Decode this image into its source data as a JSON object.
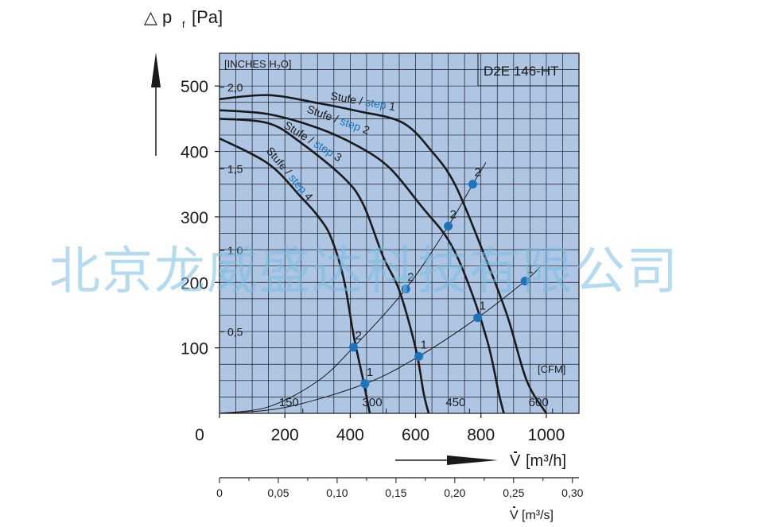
{
  "chart_data": {
    "type": "line",
    "model": "D2E 146-HT",
    "ylabel_symbol": "△ p",
    "ylabel_sub": "f",
    "ylabel_unit": "[Pa]",
    "xlabel_symbol": "V",
    "xlabel_unit": "[m³/h]",
    "x2label_symbol": "V",
    "x2label_unit": "[m³/s]",
    "inches_label_prefix": "[INCHES H",
    "inches_label_sub": "2",
    "inches_label_suffix": "O]",
    "cfm_label": "[CFM]",
    "xlim": [
      0,
      1100
    ],
    "ylim": [
      0,
      550
    ],
    "x_ticks": [
      0,
      200,
      400,
      600,
      800,
      1000
    ],
    "x_tick_labels": [
      "0",
      "200",
      "400",
      "600",
      "800",
      "1000"
    ],
    "y_ticks": [
      100,
      200,
      300,
      400,
      500
    ],
    "y_tick_labels": [
      "100",
      "200",
      "300",
      "400",
      "500"
    ],
    "inch_ticks": [
      {
        "value": 124.5,
        "label": "0,5"
      },
      {
        "value": 249,
        "label": "1,0"
      },
      {
        "value": 373.5,
        "label": "1,5"
      },
      {
        "value": 498,
        "label": "2,0"
      }
    ],
    "cfm_ticks": [
      {
        "value": 255,
        "label": "150"
      },
      {
        "value": 510,
        "label": "300"
      },
      {
        "value": 765,
        "label": "450"
      },
      {
        "value": 1019,
        "label": "600"
      }
    ],
    "m3s_ticks": [
      {
        "value": 0,
        "label": "0"
      },
      {
        "value": 0.05,
        "label": "0,05"
      },
      {
        "value": 0.1,
        "label": "0,10"
      },
      {
        "value": 0.15,
        "label": "0,15"
      },
      {
        "value": 0.2,
        "label": "0,20"
      },
      {
        "value": 0.25,
        "label": "0,25"
      },
      {
        "value": 0.3,
        "label": "0,30"
      }
    ],
    "series": [
      {
        "stufe": "Stufe / ",
        "step": "step",
        "num": "1",
        "points": [
          [
            0,
            480
          ],
          [
            150,
            486
          ],
          [
            300,
            474
          ],
          [
            420,
            462
          ],
          [
            560,
            444
          ],
          [
            650,
            400
          ],
          [
            720,
            350
          ],
          [
            800,
            255
          ],
          [
            880,
            150
          ],
          [
            940,
            50
          ],
          [
            1000,
            0
          ]
        ]
      },
      {
        "stufe": "Stufe / ",
        "step": "step",
        "num": "2",
        "points": [
          [
            0,
            463
          ],
          [
            150,
            457
          ],
          [
            300,
            436
          ],
          [
            420,
            409
          ],
          [
            520,
            375
          ],
          [
            620,
            315
          ],
          [
            700,
            265
          ],
          [
            760,
            200
          ],
          [
            820,
            110
          ],
          [
            855,
            30
          ],
          [
            870,
            0
          ]
        ]
      },
      {
        "stufe": "Stufe / ",
        "step": "step",
        "num": "3",
        "points": [
          [
            0,
            450
          ],
          [
            150,
            443
          ],
          [
            250,
            413
          ],
          [
            380,
            360
          ],
          [
            440,
            319
          ],
          [
            500,
            240
          ],
          [
            550,
            188
          ],
          [
            600,
            100
          ],
          [
            625,
            30
          ],
          [
            640,
            0
          ]
        ]
      },
      {
        "stufe": "Stufe / ",
        "step": "step",
        "num": "4",
        "points": [
          [
            0,
            420
          ],
          [
            150,
            381
          ],
          [
            250,
            330
          ],
          [
            300,
            302
          ],
          [
            340,
            270
          ],
          [
            380,
            206
          ],
          [
            410,
            120
          ],
          [
            440,
            50
          ],
          [
            460,
            0
          ]
        ]
      }
    ],
    "operating_points": [
      {
        "x": 445,
        "y": 45,
        "label": "1"
      },
      {
        "x": 410,
        "y": 101,
        "label": "2"
      },
      {
        "x": 610,
        "y": 87,
        "label": "1"
      },
      {
        "x": 570,
        "y": 190,
        "label": "2"
      },
      {
        "x": 790,
        "y": 146,
        "label": "1"
      },
      {
        "x": 700,
        "y": 286,
        "label": "2"
      },
      {
        "x": 935,
        "y": 202,
        "label": "1"
      },
      {
        "x": 775,
        "y": 350,
        "label": "2"
      }
    ],
    "system_curves": [
      {
        "name": "1",
        "points": [
          [
            0,
            0
          ],
          [
            200,
            9
          ],
          [
            445,
            45
          ],
          [
            610,
            87
          ],
          [
            790,
            146
          ],
          [
            935,
            202
          ],
          [
            980,
            223
          ]
        ]
      },
      {
        "name": "2",
        "points": [
          [
            0,
            0
          ],
          [
            150,
            10
          ],
          [
            300,
            49
          ],
          [
            410,
            101
          ],
          [
            570,
            190
          ],
          [
            700,
            286
          ],
          [
            775,
            350
          ],
          [
            815,
            383
          ]
        ]
      }
    ]
  },
  "watermark": "北京龙威盛达科技有限公司"
}
